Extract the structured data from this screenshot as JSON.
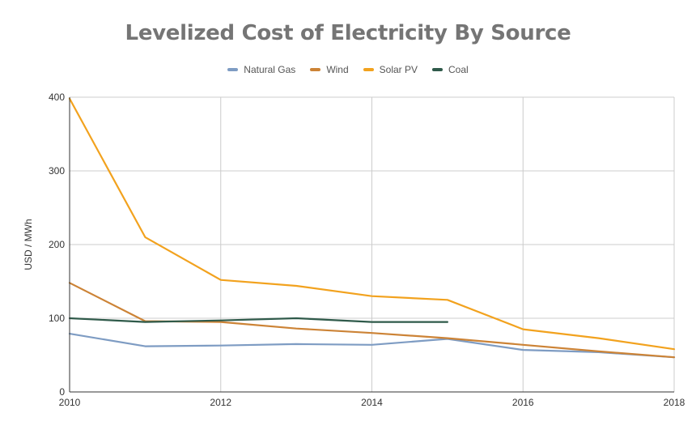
{
  "chart_data": {
    "type": "line",
    "title": "Levelized Cost of Electricity By Source",
    "xlabel": "",
    "ylabel": "USD / MWh",
    "xlim": [
      2010,
      2018
    ],
    "ylim": [
      0,
      400
    ],
    "x_ticks": [
      2010,
      2012,
      2014,
      2016,
      2018
    ],
    "y_ticks": [
      0,
      100,
      200,
      300,
      400
    ],
    "grid": true,
    "legend_position": "top",
    "series": [
      {
        "name": "Natural Gas",
        "color": "#7e9cc3",
        "x": [
          2010,
          2011,
          2012,
          2013,
          2014,
          2015,
          2016,
          2017,
          2018
        ],
        "y": [
          79,
          62,
          63,
          65,
          64,
          72,
          57,
          54,
          47
        ]
      },
      {
        "name": "Wind",
        "color": "#cc8336",
        "x": [
          2010,
          2011,
          2012,
          2013,
          2014,
          2015,
          2016,
          2017,
          2018
        ],
        "y": [
          148,
          96,
          95,
          86,
          80,
          73,
          64,
          55,
          47
        ]
      },
      {
        "name": "Solar PV",
        "color": "#f2a21e",
        "x": [
          2010,
          2011,
          2012,
          2013,
          2014,
          2015,
          2016,
          2017,
          2018
        ],
        "y": [
          398,
          210,
          152,
          144,
          130,
          125,
          85,
          73,
          58
        ]
      },
      {
        "name": "Coal",
        "color": "#2f5a4a",
        "x": [
          2010,
          2011,
          2012,
          2013,
          2014,
          2015
        ],
        "y": [
          100,
          95,
          97,
          100,
          95,
          95
        ]
      }
    ]
  }
}
